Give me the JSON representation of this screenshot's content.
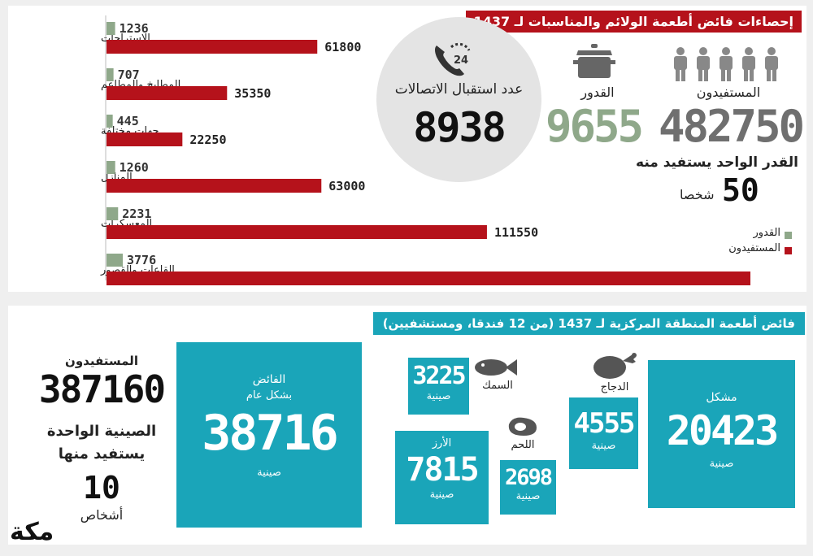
{
  "top": {
    "title": "إحصاءات فائض أطعمة الولائم والمناسبات لـ 1437",
    "calls_label": "عدد استقبال الاتصالات",
    "calls_value": "8938",
    "pots_label": "القدور",
    "pots_value": "9655",
    "beneficiaries_label": "المستفيدون",
    "beneficiaries_value": "482750",
    "per_pot_text": "القدر الواحد يستفيد منه",
    "per_pot_value": "50",
    "per_pot_unit": "شخصا"
  },
  "chart_data": {
    "type": "bar",
    "orientation": "horizontal",
    "categories": [
      "الاستراحات",
      "المطابخ والمطاعم",
      "جهات مختلفة",
      "المنازل",
      "المعسكرات",
      "القاعات والقصور"
    ],
    "series": [
      {
        "name": "القدور",
        "color": "#8fa88a",
        "values": [
          1236,
          707,
          445,
          1260,
          2231,
          3776
        ]
      },
      {
        "name": "المستفيدون",
        "color": "#b5121b",
        "values": [
          61800,
          35350,
          22250,
          63000,
          111550,
          188800
        ]
      }
    ],
    "legend": "right"
  },
  "bottom": {
    "title": "فائض أطعمة المنطقة المركزية لـ 1437 (من 12 فندقا، ومستشفيين)",
    "unit": "صينية",
    "mixed_label": "مشكل",
    "mixed_value": "20423",
    "chicken_label": "الدجاج",
    "chicken_value": "4555",
    "fish_label": "السمك",
    "fish_value": "3225",
    "meat_label": "اللحم",
    "meat_value": "2698",
    "rice_label": "الأرز",
    "rice_value": "7815",
    "surplus_label": "الفائض",
    "surplus_sub": "بشكل عام",
    "surplus_value": "38716",
    "beneficiaries_label": "المستفيدون",
    "beneficiaries_value": "387160",
    "per_tray_text1": "الصينية الواحدة",
    "per_tray_text2": "يستفيد منها",
    "per_tray_value": "10",
    "per_tray_unit": "أشخاص"
  },
  "logo": {
    "text": "مكة"
  },
  "icons": [
    "phone-24-icon",
    "pot-icon",
    "person-icon",
    "chicken-icon",
    "fish-icon",
    "steak-icon"
  ]
}
